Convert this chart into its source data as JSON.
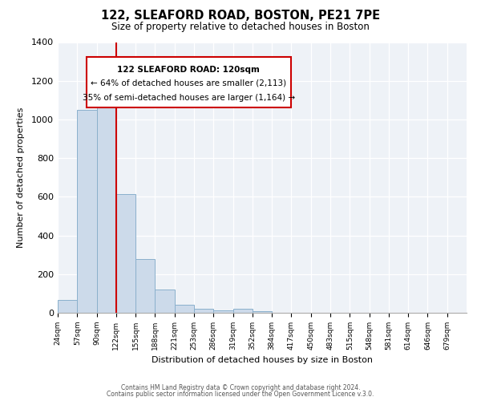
{
  "title": "122, SLEAFORD ROAD, BOSTON, PE21 7PE",
  "subtitle": "Size of property relative to detached houses in Boston",
  "xlabel": "Distribution of detached houses by size in Boston",
  "ylabel": "Number of detached properties",
  "footer_line1": "Contains HM Land Registry data © Crown copyright and database right 2024.",
  "footer_line2": "Contains public sector information licensed under the Open Government Licence v.3.0.",
  "bin_labels": [
    "24sqm",
    "57sqm",
    "90sqm",
    "122sqm",
    "155sqm",
    "188sqm",
    "221sqm",
    "253sqm",
    "286sqm",
    "319sqm",
    "352sqm",
    "384sqm",
    "417sqm",
    "450sqm",
    "483sqm",
    "515sqm",
    "548sqm",
    "581sqm",
    "614sqm",
    "646sqm",
    "679sqm"
  ],
  "bar_values": [
    65,
    1050,
    1120,
    615,
    280,
    120,
    40,
    20,
    13,
    20,
    10,
    0,
    0,
    0,
    0,
    0,
    0,
    0,
    0,
    0
  ],
  "bar_color": "#ccdaea",
  "bar_edge_color": "#8ab0cc",
  "property_line_x": 3,
  "property_line_color": "#cc0000",
  "annotation_box_color": "#cc0000",
  "annotation_line1": "122 SLEAFORD ROAD: 120sqm",
  "annotation_line2": "← 64% of detached houses are smaller (2,113)",
  "annotation_line3": "35% of semi-detached houses are larger (1,164) →",
  "ylim": [
    0,
    1400
  ],
  "yticks": [
    0,
    200,
    400,
    600,
    800,
    1000,
    1200,
    1400
  ],
  "bg_color": "#eef2f7",
  "grid_color": "#ffffff"
}
